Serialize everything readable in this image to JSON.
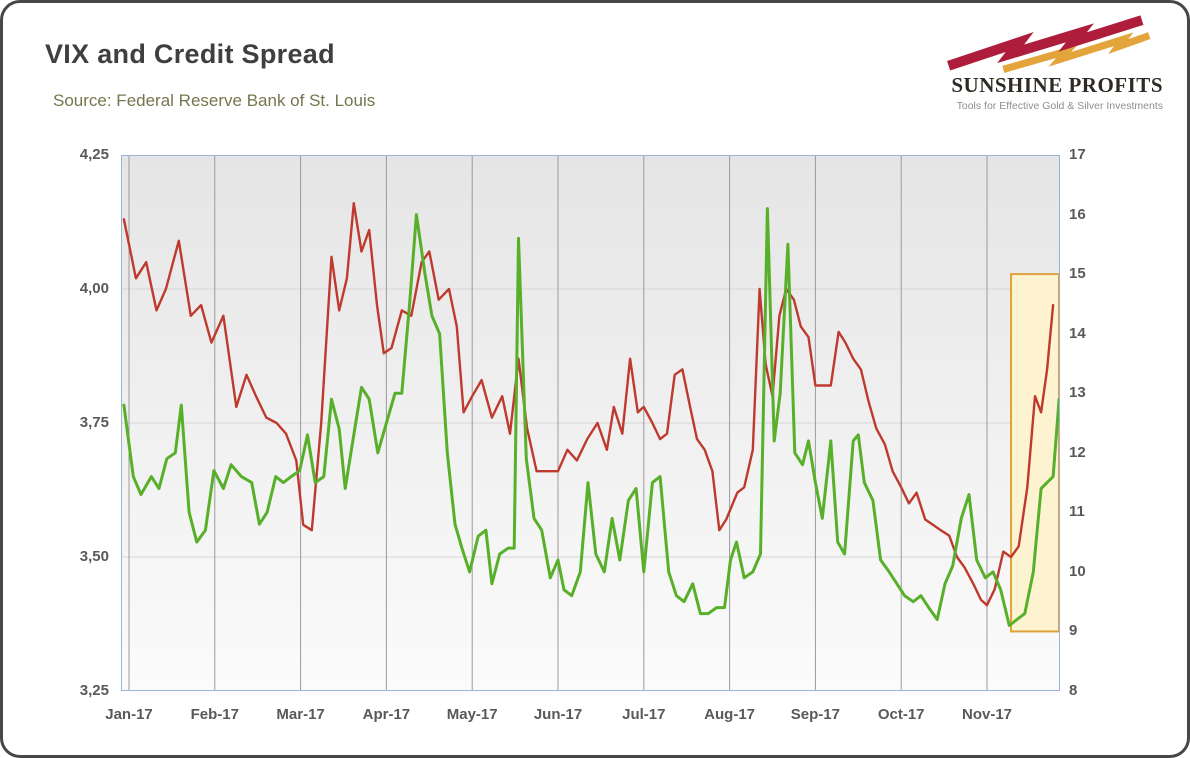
{
  "header": {
    "title": "VIX and Credit Spread",
    "source": "Source: Federal Reserve Bank of St. Louis"
  },
  "logo": {
    "name": "SUNSHINE PROFITS",
    "tagline": "Tools for Effective Gold & Silver Investments"
  },
  "chart_data": {
    "type": "line",
    "title": "VIX and Credit Spread",
    "x_tick_labels": [
      "Jan-17",
      "Feb-17",
      "Mar-17",
      "Apr-17",
      "May-17",
      "Jun-17",
      "Jul-17",
      "Aug-17",
      "Sep-17",
      "Oct-17",
      "Nov-17"
    ],
    "left_axis": {
      "min": 3.25,
      "max": 4.25,
      "ticks": [
        "4,25",
        "4,00",
        "3,75",
        "3,50",
        "3,25"
      ],
      "tick_values": [
        4.25,
        4.0,
        3.75,
        3.5,
        3.25
      ]
    },
    "right_axis": {
      "min": 8,
      "max": 17,
      "ticks": [
        "17",
        "16",
        "15",
        "14",
        "13",
        "12",
        "11",
        "10",
        "9",
        "8"
      ],
      "tick_values": [
        17,
        16,
        15,
        14,
        13,
        12,
        11,
        10,
        9,
        8
      ]
    },
    "grid": "vertical-monthly",
    "legend": "none",
    "highlight": {
      "x_start": 10.28,
      "x_end": 10.85,
      "right_axis_top": 15,
      "right_axis_bottom": 9,
      "fill": "#fdf3d0",
      "border": "#dfa33e"
    },
    "series": [
      {
        "name": "Credit Spread",
        "axis": "left",
        "color": "#bf3a2e",
        "stroke_width": 2.4,
        "points": [
          [
            -0.06,
            4.13
          ],
          [
            0.08,
            4.02
          ],
          [
            0.2,
            4.05
          ],
          [
            0.32,
            3.96
          ],
          [
            0.43,
            4.0
          ],
          [
            0.58,
            4.09
          ],
          [
            0.72,
            3.95
          ],
          [
            0.84,
            3.97
          ],
          [
            0.96,
            3.9
          ],
          [
            1.1,
            3.95
          ],
          [
            1.25,
            3.78
          ],
          [
            1.37,
            3.84
          ],
          [
            1.48,
            3.8
          ],
          [
            1.6,
            3.76
          ],
          [
            1.72,
            3.75
          ],
          [
            1.83,
            3.73
          ],
          [
            1.95,
            3.68
          ],
          [
            2.03,
            3.56
          ],
          [
            2.13,
            3.55
          ],
          [
            2.24,
            3.75
          ],
          [
            2.36,
            4.06
          ],
          [
            2.45,
            3.96
          ],
          [
            2.54,
            4.02
          ],
          [
            2.62,
            4.16
          ],
          [
            2.71,
            4.07
          ],
          [
            2.8,
            4.11
          ],
          [
            2.89,
            3.97
          ],
          [
            2.97,
            3.88
          ],
          [
            3.06,
            3.89
          ],
          [
            3.18,
            3.96
          ],
          [
            3.29,
            3.95
          ],
          [
            3.41,
            4.05
          ],
          [
            3.5,
            4.07
          ],
          [
            3.61,
            3.98
          ],
          [
            3.73,
            4.0
          ],
          [
            3.82,
            3.93
          ],
          [
            3.9,
            3.77
          ],
          [
            4.0,
            3.8
          ],
          [
            4.11,
            3.83
          ],
          [
            4.23,
            3.76
          ],
          [
            4.35,
            3.8
          ],
          [
            4.44,
            3.73
          ],
          [
            4.54,
            3.87
          ],
          [
            4.64,
            3.74
          ],
          [
            4.75,
            3.66
          ],
          [
            4.87,
            3.66
          ],
          [
            5.0,
            3.66
          ],
          [
            5.11,
            3.7
          ],
          [
            5.22,
            3.68
          ],
          [
            5.34,
            3.72
          ],
          [
            5.46,
            3.75
          ],
          [
            5.57,
            3.7
          ],
          [
            5.65,
            3.78
          ],
          [
            5.75,
            3.73
          ],
          [
            5.84,
            3.87
          ],
          [
            5.93,
            3.77
          ],
          [
            6.0,
            3.78
          ],
          [
            6.1,
            3.75
          ],
          [
            6.19,
            3.72
          ],
          [
            6.27,
            3.73
          ],
          [
            6.36,
            3.84
          ],
          [
            6.45,
            3.85
          ],
          [
            6.54,
            3.78
          ],
          [
            6.62,
            3.72
          ],
          [
            6.71,
            3.7
          ],
          [
            6.8,
            3.66
          ],
          [
            6.88,
            3.55
          ],
          [
            6.96,
            3.57
          ],
          [
            7.09,
            3.62
          ],
          [
            7.17,
            3.63
          ],
          [
            7.27,
            3.7
          ],
          [
            7.35,
            4.0
          ],
          [
            7.42,
            3.86
          ],
          [
            7.5,
            3.8
          ],
          [
            7.58,
            3.95
          ],
          [
            7.66,
            4.0
          ],
          [
            7.75,
            3.98
          ],
          [
            7.83,
            3.93
          ],
          [
            7.92,
            3.91
          ],
          [
            8.0,
            3.82
          ],
          [
            8.08,
            3.82
          ],
          [
            8.18,
            3.82
          ],
          [
            8.27,
            3.92
          ],
          [
            8.35,
            3.9
          ],
          [
            8.44,
            3.87
          ],
          [
            8.53,
            3.85
          ],
          [
            8.62,
            3.79
          ],
          [
            8.71,
            3.74
          ],
          [
            8.81,
            3.71
          ],
          [
            8.9,
            3.66
          ],
          [
            9.0,
            3.63
          ],
          [
            9.09,
            3.6
          ],
          [
            9.18,
            3.62
          ],
          [
            9.28,
            3.57
          ],
          [
            9.37,
            3.56
          ],
          [
            9.46,
            3.55
          ],
          [
            9.56,
            3.54
          ],
          [
            9.65,
            3.5
          ],
          [
            9.74,
            3.48
          ],
          [
            9.84,
            3.45
          ],
          [
            9.93,
            3.42
          ],
          [
            10.0,
            3.41
          ],
          [
            10.09,
            3.44
          ],
          [
            10.19,
            3.51
          ],
          [
            10.28,
            3.5
          ],
          [
            10.37,
            3.52
          ],
          [
            10.47,
            3.63
          ],
          [
            10.56,
            3.8
          ],
          [
            10.63,
            3.77
          ],
          [
            10.7,
            3.85
          ],
          [
            10.77,
            3.97
          ]
        ]
      },
      {
        "name": "VIX",
        "axis": "right",
        "color": "#58b02a",
        "stroke_width": 3,
        "points": [
          [
            -0.06,
            12.8
          ],
          [
            0.05,
            11.6
          ],
          [
            0.14,
            11.3
          ],
          [
            0.26,
            11.6
          ],
          [
            0.35,
            11.4
          ],
          [
            0.44,
            11.9
          ],
          [
            0.54,
            12.0
          ],
          [
            0.61,
            12.8
          ],
          [
            0.7,
            11.0
          ],
          [
            0.79,
            10.5
          ],
          [
            0.89,
            10.7
          ],
          [
            0.99,
            11.7
          ],
          [
            1.1,
            11.4
          ],
          [
            1.19,
            11.8
          ],
          [
            1.31,
            11.6
          ],
          [
            1.43,
            11.5
          ],
          [
            1.52,
            10.8
          ],
          [
            1.61,
            11.0
          ],
          [
            1.71,
            11.6
          ],
          [
            1.8,
            11.5
          ],
          [
            1.89,
            11.6
          ],
          [
            1.99,
            11.7
          ],
          [
            2.08,
            12.3
          ],
          [
            2.17,
            11.5
          ],
          [
            2.27,
            11.6
          ],
          [
            2.36,
            12.9
          ],
          [
            2.45,
            12.4
          ],
          [
            2.52,
            11.4
          ],
          [
            2.62,
            12.3
          ],
          [
            2.71,
            13.1
          ],
          [
            2.8,
            12.9
          ],
          [
            2.9,
            12.0
          ],
          [
            3.0,
            12.5
          ],
          [
            3.1,
            13.0
          ],
          [
            3.18,
            13.0
          ],
          [
            3.27,
            14.5
          ],
          [
            3.35,
            16.0
          ],
          [
            3.45,
            15.0
          ],
          [
            3.53,
            14.3
          ],
          [
            3.62,
            14.0
          ],
          [
            3.71,
            12.0
          ],
          [
            3.8,
            10.8
          ],
          [
            3.88,
            10.4
          ],
          [
            3.97,
            10.0
          ],
          [
            4.07,
            10.6
          ],
          [
            4.16,
            10.7
          ],
          [
            4.23,
            9.8
          ],
          [
            4.32,
            10.3
          ],
          [
            4.42,
            10.4
          ],
          [
            4.49,
            10.4
          ],
          [
            4.54,
            15.6
          ],
          [
            4.63,
            11.9
          ],
          [
            4.72,
            10.9
          ],
          [
            4.81,
            10.7
          ],
          [
            4.91,
            9.9
          ],
          [
            5.0,
            10.2
          ],
          [
            5.07,
            9.7
          ],
          [
            5.16,
            9.6
          ],
          [
            5.26,
            10.0
          ],
          [
            5.35,
            11.5
          ],
          [
            5.44,
            10.3
          ],
          [
            5.54,
            10.0
          ],
          [
            5.63,
            10.9
          ],
          [
            5.72,
            10.2
          ],
          [
            5.82,
            11.2
          ],
          [
            5.91,
            11.4
          ],
          [
            6.0,
            10.0
          ],
          [
            6.1,
            11.5
          ],
          [
            6.19,
            11.6
          ],
          [
            6.29,
            10.0
          ],
          [
            6.38,
            9.6
          ],
          [
            6.47,
            9.5
          ],
          [
            6.57,
            9.8
          ],
          [
            6.66,
            9.3
          ],
          [
            6.75,
            9.3
          ],
          [
            6.85,
            9.4
          ],
          [
            6.94,
            9.4
          ],
          [
            7.01,
            10.2
          ],
          [
            7.08,
            10.5
          ],
          [
            7.17,
            9.9
          ],
          [
            7.27,
            10.0
          ],
          [
            7.36,
            10.3
          ],
          [
            7.44,
            16.1
          ],
          [
            7.52,
            12.2
          ],
          [
            7.59,
            13.0
          ],
          [
            7.68,
            15.5
          ],
          [
            7.76,
            12.0
          ],
          [
            7.85,
            11.8
          ],
          [
            7.92,
            12.2
          ],
          [
            8.0,
            11.5
          ],
          [
            8.08,
            10.9
          ],
          [
            8.18,
            12.2
          ],
          [
            8.26,
            10.5
          ],
          [
            8.34,
            10.3
          ],
          [
            8.44,
            12.2
          ],
          [
            8.5,
            12.3
          ],
          [
            8.57,
            11.5
          ],
          [
            8.67,
            11.2
          ],
          [
            8.76,
            10.2
          ],
          [
            8.86,
            10.0
          ],
          [
            8.95,
            9.8
          ],
          [
            9.04,
            9.6
          ],
          [
            9.14,
            9.5
          ],
          [
            9.23,
            9.6
          ],
          [
            9.32,
            9.4
          ],
          [
            9.42,
            9.2
          ],
          [
            9.51,
            9.8
          ],
          [
            9.6,
            10.1
          ],
          [
            9.7,
            10.9
          ],
          [
            9.79,
            11.3
          ],
          [
            9.88,
            10.2
          ],
          [
            9.98,
            9.9
          ],
          [
            10.07,
            10.0
          ],
          [
            10.16,
            9.7
          ],
          [
            10.26,
            9.1
          ],
          [
            10.35,
            9.2
          ],
          [
            10.44,
            9.3
          ],
          [
            10.54,
            10.0
          ],
          [
            10.63,
            11.4
          ],
          [
            10.7,
            11.5
          ],
          [
            10.77,
            11.6
          ],
          [
            10.84,
            12.9
          ]
        ]
      }
    ],
    "style": {
      "plot_bg_top": "#e5e5e5",
      "plot_bg_bottom": "#fbfbfb",
      "gridline_color": "#9b9b9b",
      "h_gridline_color": "#d6d6d6",
      "axis_border_color": "#9bb3d5"
    }
  }
}
